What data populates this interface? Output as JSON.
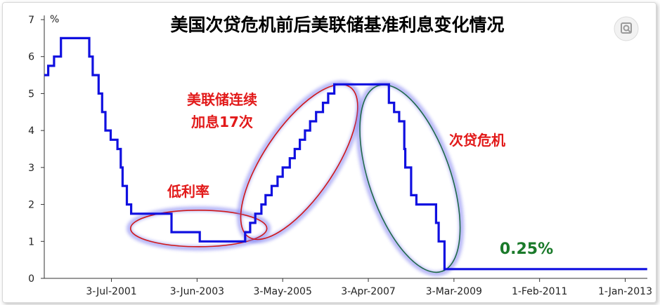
{
  "chart_data": {
    "type": "line",
    "step": true,
    "title": "美国次贷危机前后美联储基准利息变化情况",
    "xlabel": "",
    "ylabel": "%",
    "ylim": [
      0,
      7
    ],
    "yticks": [
      0,
      1,
      2,
      3,
      4,
      5,
      6,
      7
    ],
    "xlim": [
      "2000-01-01",
      "2013-07-01"
    ],
    "xticks": [
      {
        "date": "2001-07-03",
        "label": "3-Jul-2001"
      },
      {
        "date": "2003-06-03",
        "label": "3-Jun-2003"
      },
      {
        "date": "2005-05-03",
        "label": "3-May-2005"
      },
      {
        "date": "2007-04-03",
        "label": "3-Apr-2007"
      },
      {
        "date": "2009-03-03",
        "label": "3-Mar-2009"
      },
      {
        "date": "2011-02-01",
        "label": "1-Feb-2011"
      },
      {
        "date": "2013-01-01",
        "label": "1-Jan-2013"
      }
    ],
    "series": [
      {
        "name": "",
        "color": "#1010e0",
        "points": [
          [
            "2000-01-01",
            5.5
          ],
          [
            "2000-02-02",
            5.75
          ],
          [
            "2000-03-21",
            6.0
          ],
          [
            "2000-05-16",
            6.5
          ],
          [
            "2001-01-03",
            6.0
          ],
          [
            "2001-01-31",
            5.5
          ],
          [
            "2001-03-20",
            5.0
          ],
          [
            "2001-04-18",
            4.5
          ],
          [
            "2001-05-15",
            4.0
          ],
          [
            "2001-06-27",
            3.75
          ],
          [
            "2001-08-21",
            3.5
          ],
          [
            "2001-09-17",
            3.0
          ],
          [
            "2001-10-02",
            2.5
          ],
          [
            "2001-11-06",
            2.0
          ],
          [
            "2001-12-11",
            1.75
          ],
          [
            "2002-11-06",
            1.25
          ],
          [
            "2003-06-25",
            1.0
          ],
          [
            "2004-06-30",
            1.25
          ],
          [
            "2004-08-10",
            1.5
          ],
          [
            "2004-09-21",
            1.75
          ],
          [
            "2004-11-10",
            2.0
          ],
          [
            "2004-12-14",
            2.25
          ],
          [
            "2005-02-02",
            2.5
          ],
          [
            "2005-03-22",
            2.75
          ],
          [
            "2005-05-03",
            3.0
          ],
          [
            "2005-06-30",
            3.25
          ],
          [
            "2005-08-09",
            3.5
          ],
          [
            "2005-09-20",
            3.75
          ],
          [
            "2005-11-01",
            4.0
          ],
          [
            "2005-12-13",
            4.25
          ],
          [
            "2006-01-31",
            4.5
          ],
          [
            "2006-03-28",
            4.75
          ],
          [
            "2006-05-10",
            5.0
          ],
          [
            "2006-06-29",
            5.25
          ],
          [
            "2007-09-18",
            4.75
          ],
          [
            "2007-10-31",
            4.5
          ],
          [
            "2007-12-11",
            4.25
          ],
          [
            "2008-01-22",
            3.5
          ],
          [
            "2008-01-30",
            3.0
          ],
          [
            "2008-03-18",
            2.25
          ],
          [
            "2008-04-30",
            2.0
          ],
          [
            "2008-10-08",
            1.5
          ],
          [
            "2008-10-29",
            1.0
          ],
          [
            "2008-12-16",
            0.25
          ],
          [
            "2013-06-30",
            0.25
          ]
        ]
      }
    ],
    "annotations": [
      {
        "text": "低利率"
      },
      {
        "text": "美联储连续",
        "text2": "加息17次"
      },
      {
        "text": "次贷危机"
      },
      {
        "text": "0.25%"
      }
    ]
  }
}
